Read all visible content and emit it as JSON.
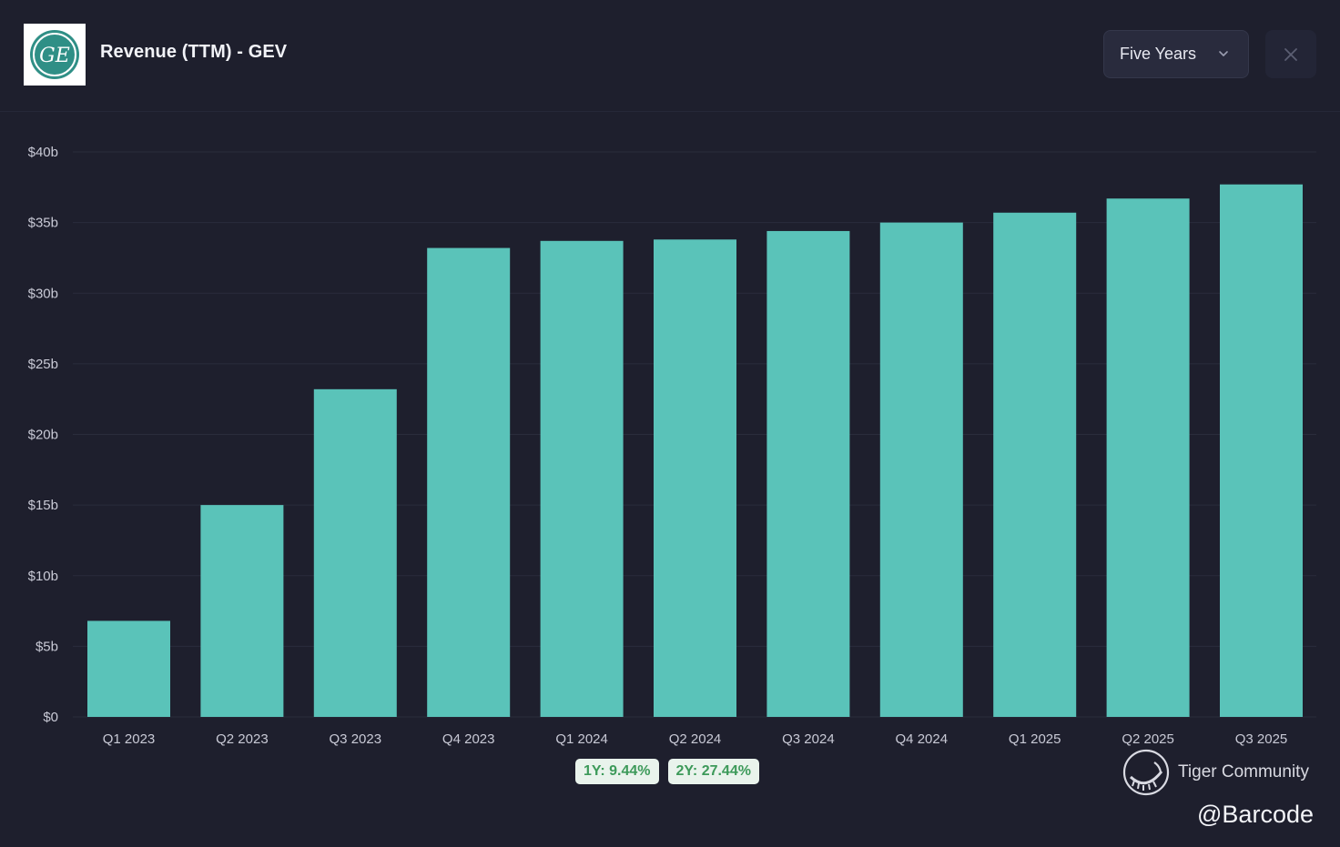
{
  "header": {
    "title": "Revenue (TTM) - GEV",
    "logo_text": "GE",
    "period_select": {
      "value": "Five Years"
    }
  },
  "colors": {
    "background": "#1e1f2d",
    "bar": "#5ac3b9",
    "grid": "#2a2c3c",
    "badge_bg": "#e9f3ec",
    "badge_text": "#3d9a5a"
  },
  "chart_data": {
    "type": "bar",
    "title": "Revenue (TTM) - GEV",
    "xlabel": "",
    "ylabel": "",
    "categories": [
      "Q1 2023",
      "Q2 2023",
      "Q3 2023",
      "Q4 2023",
      "Q1 2024",
      "Q2 2024",
      "Q3 2024",
      "Q4 2024",
      "Q1 2025",
      "Q2 2025",
      "Q3 2025"
    ],
    "values": [
      6.8,
      15.0,
      23.2,
      33.2,
      33.7,
      33.8,
      34.4,
      35.0,
      35.7,
      36.7,
      37.7
    ],
    "y_ticks": [
      "$0",
      "$5b",
      "$10b",
      "$15b",
      "$20b",
      "$25b",
      "$30b",
      "$35b",
      "$40b"
    ],
    "y_tick_values": [
      0,
      5,
      10,
      15,
      20,
      25,
      30,
      35,
      40
    ],
    "ylim": [
      0,
      40
    ],
    "grid": true,
    "legend": "none"
  },
  "growth_badges": [
    {
      "label": "1Y: 9.44%"
    },
    {
      "label": "2Y: 27.44%"
    }
  ],
  "watermark": {
    "brand": "Tiger Community",
    "handle": "@Barcode"
  }
}
